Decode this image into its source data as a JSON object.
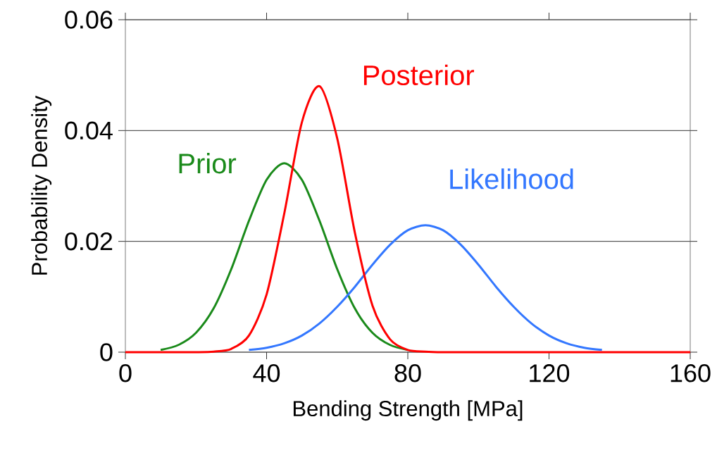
{
  "chart_data": {
    "type": "line",
    "xlabel": "Bending Strength [MPa]",
    "ylabel": "Probability Density",
    "x": [
      0,
      5,
      10,
      15,
      20,
      25,
      30,
      35,
      40,
      45,
      50,
      55,
      60,
      65,
      70,
      75,
      80,
      85,
      90,
      95,
      100,
      105,
      110,
      115,
      120,
      125,
      130,
      135,
      140,
      145,
      150,
      155,
      160
    ],
    "series": [
      {
        "name": "Prior",
        "color": "#1a8a1a",
        "x": [
          10,
          15,
          20,
          25,
          30,
          35,
          40,
          45,
          50,
          55,
          60,
          65,
          70,
          75,
          80
        ],
        "values": [
          0.0004,
          0.0013,
          0.0035,
          0.0079,
          0.015,
          0.0237,
          0.0311,
          0.0341,
          0.0311,
          0.0237,
          0.015,
          0.0079,
          0.0035,
          0.0013,
          0.0004
        ]
      },
      {
        "name": "Likelihood",
        "color": "#3377ff",
        "x": [
          35,
          40,
          45,
          50,
          55,
          60,
          65,
          70,
          75,
          80,
          85,
          90,
          95,
          100,
          105,
          110,
          115,
          120,
          125,
          130,
          135
        ],
        "values": [
          0.0004,
          0.0008,
          0.0016,
          0.003,
          0.0052,
          0.0082,
          0.0118,
          0.0158,
          0.0194,
          0.022,
          0.0229,
          0.022,
          0.0194,
          0.0158,
          0.0118,
          0.0082,
          0.0052,
          0.003,
          0.0016,
          0.0008,
          0.0004
        ]
      },
      {
        "name": "Posterior",
        "color": "#ff0000",
        "values": [
          0,
          0,
          0,
          0,
          0,
          0.0001,
          0.0006,
          0.003,
          0.0104,
          0.025,
          0.0415,
          0.048,
          0.0386,
          0.0216,
          0.0084,
          0.0023,
          0.0004,
          0.0001,
          0,
          0,
          0,
          0,
          0,
          0,
          0,
          0,
          0,
          0,
          0,
          0,
          0,
          0,
          0
        ]
      }
    ],
    "xlim": [
      0,
      160
    ],
    "ylim": [
      0,
      0.06
    ],
    "xticks": [
      0,
      40,
      80,
      120,
      160
    ],
    "yticks": [
      0,
      0.02,
      0.04,
      0.06
    ],
    "grid": "y",
    "marker": "none",
    "line_style": "solid"
  }
}
